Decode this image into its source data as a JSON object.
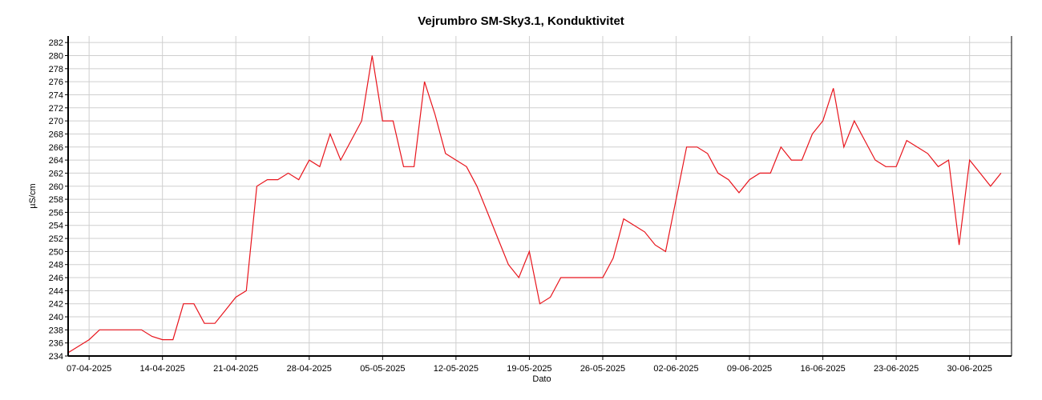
{
  "chart_data": {
    "type": "line",
    "title": "Vejrumbro SM-Sky3.1, Konduktivitet",
    "x_label": "Dato",
    "y_label": "µS/cm",
    "x": [
      "2025-04-05",
      "2025-04-06",
      "2025-04-07",
      "2025-04-08",
      "2025-04-09",
      "2025-04-10",
      "2025-04-11",
      "2025-04-12",
      "2025-04-13",
      "2025-04-14",
      "2025-04-15",
      "2025-04-16",
      "2025-04-17",
      "2025-04-18",
      "2025-04-19",
      "2025-04-20",
      "2025-04-21",
      "2025-04-22",
      "2025-04-23",
      "2025-04-24",
      "2025-04-25",
      "2025-04-26",
      "2025-04-27",
      "2025-04-28",
      "2025-04-29",
      "2025-04-30",
      "2025-05-01",
      "2025-05-02",
      "2025-05-03",
      "2025-05-04",
      "2025-05-05",
      "2025-05-06",
      "2025-05-07",
      "2025-05-08",
      "2025-05-09",
      "2025-05-10",
      "2025-05-11",
      "2025-05-12",
      "2025-05-13",
      "2025-05-14",
      "2025-05-15",
      "2025-05-16",
      "2025-05-17",
      "2025-05-18",
      "2025-05-19",
      "2025-05-20",
      "2025-05-21",
      "2025-05-22",
      "2025-05-23",
      "2025-05-24",
      "2025-05-25",
      "2025-05-26",
      "2025-05-27",
      "2025-05-28",
      "2025-05-29",
      "2025-05-30",
      "2025-05-31",
      "2025-06-01",
      "2025-06-02",
      "2025-06-03",
      "2025-06-04",
      "2025-06-05",
      "2025-06-06",
      "2025-06-07",
      "2025-06-08",
      "2025-06-09",
      "2025-06-10",
      "2025-06-11",
      "2025-06-12",
      "2025-06-13",
      "2025-06-14",
      "2025-06-15",
      "2025-06-16",
      "2025-06-17",
      "2025-06-18",
      "2025-06-19",
      "2025-06-20",
      "2025-06-21",
      "2025-06-22",
      "2025-06-23",
      "2025-06-24",
      "2025-06-25",
      "2025-06-26",
      "2025-06-27",
      "2025-06-28",
      "2025-06-29",
      "2025-06-30",
      "2025-07-01",
      "2025-07-02",
      "2025-07-03"
    ],
    "series": [
      {
        "name": "Konduktivitet",
        "color": "#e8141c",
        "values": [
          234.5,
          235.5,
          236.5,
          238,
          238,
          238,
          238,
          238,
          237,
          236.5,
          236.5,
          242,
          242,
          239,
          239,
          241,
          243,
          244,
          260,
          261,
          261,
          262,
          261,
          264,
          263,
          268,
          264,
          267,
          270,
          280,
          270,
          270,
          263,
          263,
          276,
          271,
          265,
          264,
          263,
          260,
          256,
          252,
          248,
          246,
          250,
          242,
          243,
          246,
          246,
          246,
          246,
          246,
          249,
          255,
          254,
          253,
          251,
          250,
          258,
          266,
          266,
          265,
          262,
          261,
          259,
          261,
          262,
          262,
          266,
          264,
          264,
          268,
          270,
          275,
          266,
          270,
          267,
          264,
          263,
          263,
          267,
          266,
          265,
          263,
          264,
          251,
          264,
          262,
          260,
          262
        ]
      }
    ],
    "xlim": [
      "2025-04-05",
      "2025-07-04"
    ],
    "xticks": [
      {
        "value": "2025-04-07",
        "label": "07-04-2025"
      },
      {
        "value": "2025-04-14",
        "label": "14-04-2025"
      },
      {
        "value": "2025-04-21",
        "label": "21-04-2025"
      },
      {
        "value": "2025-04-28",
        "label": "28-04-2025"
      },
      {
        "value": "2025-05-05",
        "label": "05-05-2025"
      },
      {
        "value": "2025-05-12",
        "label": "12-05-2025"
      },
      {
        "value": "2025-05-19",
        "label": "19-05-2025"
      },
      {
        "value": "2025-05-26",
        "label": "26-05-2025"
      },
      {
        "value": "2025-06-02",
        "label": "02-06-2025"
      },
      {
        "value": "2025-06-09",
        "label": "09-06-2025"
      },
      {
        "value": "2025-06-16",
        "label": "16-06-2025"
      },
      {
        "value": "2025-06-23",
        "label": "23-06-2025"
      },
      {
        "value": "2025-06-30",
        "label": "30-06-2025"
      }
    ],
    "ylim": [
      234,
      283
    ],
    "yticks": [
      234,
      236,
      238,
      240,
      242,
      244,
      246,
      248,
      250,
      252,
      254,
      256,
      258,
      260,
      262,
      264,
      266,
      268,
      270,
      272,
      274,
      276,
      278,
      280,
      282
    ],
    "grid": true
  }
}
